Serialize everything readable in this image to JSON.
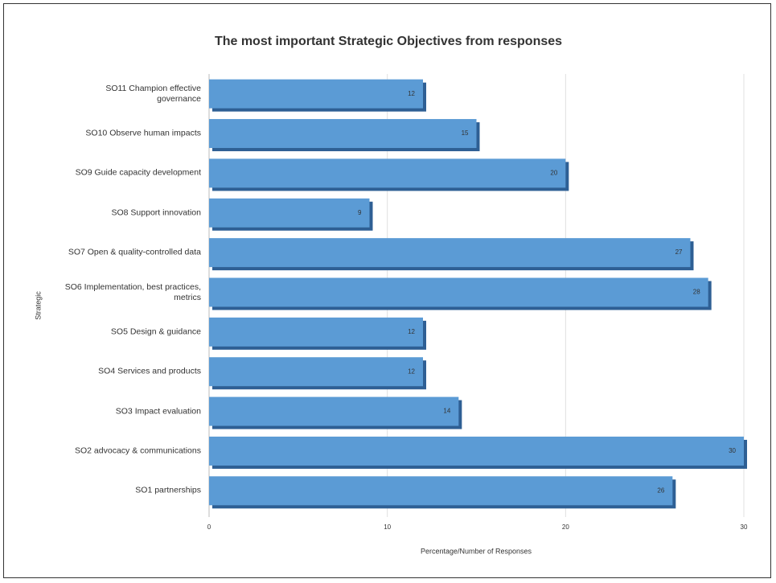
{
  "chart_data": {
    "type": "bar",
    "orientation": "horizontal",
    "title": "The most important Strategic Objectives from responses",
    "x_label": "Percentage/Number of Responses",
    "y_label": "Strategic",
    "categories": [
      "SO11 Champion effective governance",
      "SO10 Observe human impacts",
      "SO9 Guide capacity development",
      "SO8 Support innovation",
      "SO7 Open & quality-controlled data",
      "SO6 Implementation, best practices, metrics",
      "SO5 Design & guidance",
      "SO4 Services and products",
      "SO3 Impact evaluation",
      "SO2 advocacy & communications",
      "SO1 partnerships"
    ],
    "values": [
      12,
      15,
      20,
      9,
      27,
      28,
      12,
      12,
      14,
      30,
      26
    ],
    "color": "#5b9bd5",
    "xlim": [
      0,
      30
    ],
    "xticks": [
      0,
      10,
      20,
      30
    ],
    "grid": true
  }
}
